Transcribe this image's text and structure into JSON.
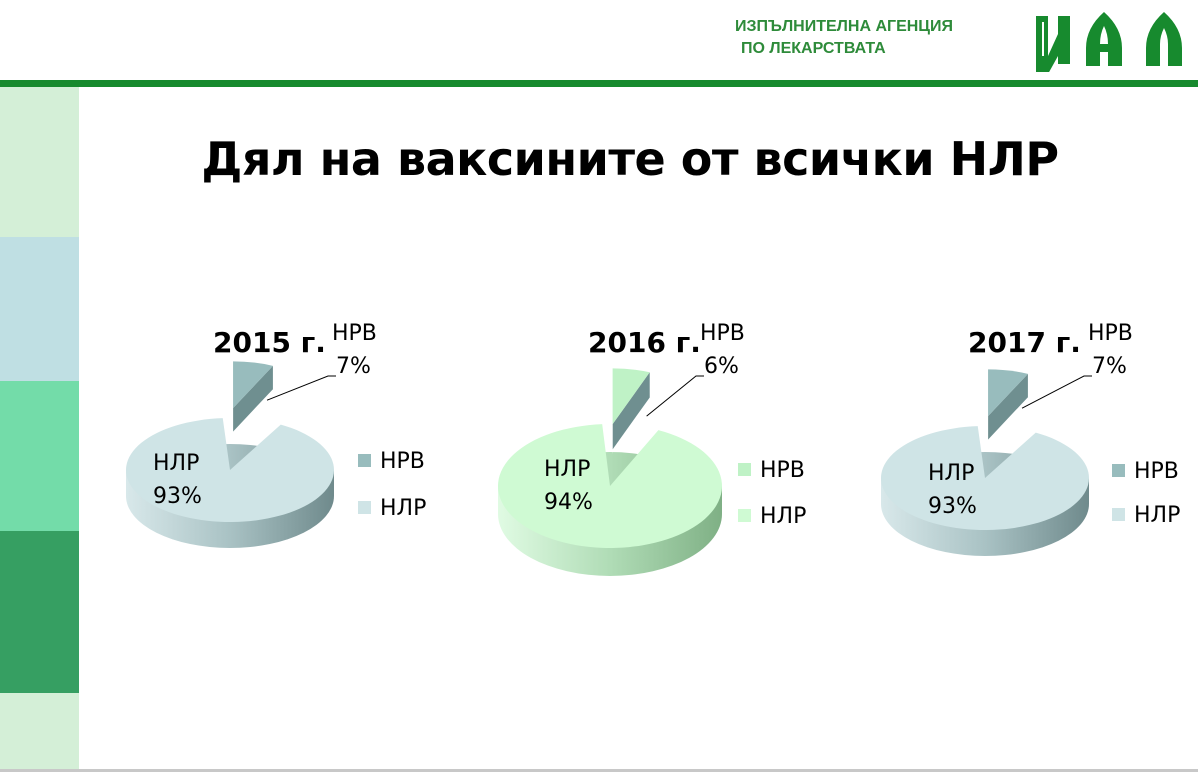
{
  "header": {
    "agency_line1": "ИЗПЪЛНИТЕЛНА АГЕНЦИЯ",
    "agency_line2": "ПО ЛЕКАРСТВАТА",
    "logo_letters": "ИАЛ"
  },
  "title": "Дял на ваксините от всички НЛР",
  "colors": {
    "primary_green": "#178a2e",
    "band_colors": [
      "#d4efd7",
      "#bfdfe3",
      "#73dca9",
      "#369f62",
      "#d4efd7"
    ]
  },
  "chart_data": [
    {
      "type": "pie",
      "title": "2015 г.",
      "labels": [
        "НРВ",
        "НЛР"
      ],
      "values": [
        7,
        93
      ],
      "data_labels": [
        "7%",
        "93%"
      ],
      "colors": [
        "#98bcbd",
        "#cfe4e6"
      ],
      "legend": [
        "НРВ",
        "НЛР"
      ],
      "legend_position": "right"
    },
    {
      "type": "pie",
      "title": "2016 г.",
      "labels": [
        "НРВ",
        "НЛР"
      ],
      "values": [
        6,
        94
      ],
      "data_labels": [
        "6%",
        "94%"
      ],
      "colors": [
        "#bff2c6",
        "#cffad3"
      ],
      "legend": [
        "НРВ",
        "НЛР"
      ],
      "legend_position": "right"
    },
    {
      "type": "pie",
      "title": "2017 г.",
      "labels": [
        "НРВ",
        "НЛР"
      ],
      "values": [
        7,
        93
      ],
      "data_labels": [
        "7%",
        "93%"
      ],
      "colors": [
        "#98bcbd",
        "#cfe4e6"
      ],
      "legend": [
        "НРВ",
        "НЛР"
      ],
      "legend_position": "right"
    }
  ]
}
